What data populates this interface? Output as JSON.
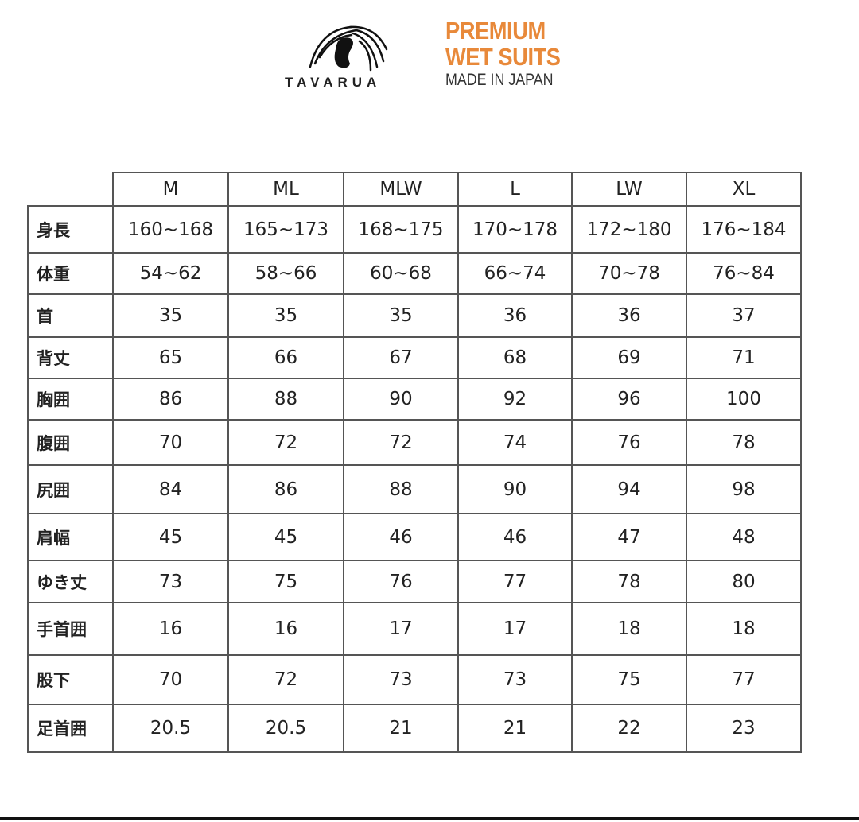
{
  "brand": {
    "name": "TAVARUA",
    "tagline_line1": "PREMIUM",
    "tagline_line2": "WET SUITS",
    "tagline_line3": "MADE IN JAPAN",
    "accent_color": "#e8893a"
  },
  "table": {
    "sizes": [
      "M",
      "ML",
      "MLW",
      "L",
      "LW",
      "XL"
    ],
    "rows": [
      {
        "label": "身長",
        "values": [
          "160~168",
          "165~173",
          "168~175",
          "170~178",
          "172~180",
          "176~184"
        ]
      },
      {
        "label": "体重",
        "values": [
          "54~62",
          "58~66",
          "60~68",
          "66~74",
          "70~78",
          "76~84"
        ]
      },
      {
        "label": "首",
        "values": [
          "35",
          "35",
          "35",
          "36",
          "36",
          "37"
        ]
      },
      {
        "label": "背丈",
        "values": [
          "65",
          "66",
          "67",
          "68",
          "69",
          "71"
        ]
      },
      {
        "label": "胸囲",
        "values": [
          "86",
          "88",
          "90",
          "92",
          "96",
          "100"
        ]
      },
      {
        "label": "腹囲",
        "values": [
          "70",
          "72",
          "72",
          "74",
          "76",
          "78"
        ]
      },
      {
        "label": "尻囲",
        "values": [
          "84",
          "86",
          "88",
          "90",
          "94",
          "98"
        ]
      },
      {
        "label": "肩幅",
        "values": [
          "45",
          "45",
          "46",
          "46",
          "47",
          "48"
        ]
      },
      {
        "label": "ゆき丈",
        "values": [
          "73",
          "75",
          "76",
          "77",
          "78",
          "80"
        ]
      },
      {
        "label": "手首囲",
        "values": [
          "16",
          "16",
          "17",
          "17",
          "18",
          "18"
        ]
      },
      {
        "label": "股下",
        "values": [
          "70",
          "72",
          "73",
          "73",
          "75",
          "77"
        ]
      },
      {
        "label": "足首囲",
        "values": [
          "20.5",
          "20.5",
          "21",
          "21",
          "22",
          "23"
        ]
      }
    ]
  }
}
